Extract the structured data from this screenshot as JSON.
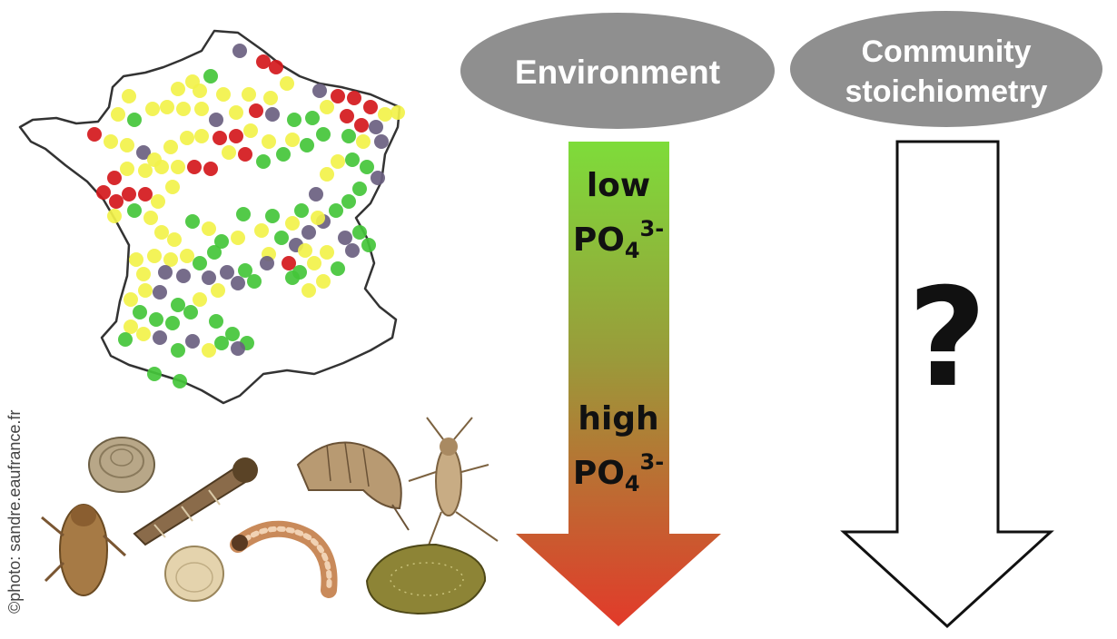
{
  "credit": "©photo: sandre.eaufrance.fr",
  "environment": {
    "title": "Environment",
    "gradient_top": "#7edc3a",
    "gradient_bottom": "#e23a2a",
    "low_label_line1": "low",
    "low_label_line2": "PO",
    "high_label_line1": "high",
    "high_label_line2": "PO",
    "subscript": "4",
    "superscript": "3-"
  },
  "community": {
    "title_line1": "Community",
    "title_line2": "stoichiometry",
    "question": "?"
  },
  "map": {
    "colors": {
      "green": "#44c63a",
      "yellow": "#f2f24a",
      "red": "#d4181c",
      "purple": "#6a5f80"
    }
  },
  "colors": {
    "oval_fill": "#8f8f8f",
    "outline": "#111111"
  }
}
